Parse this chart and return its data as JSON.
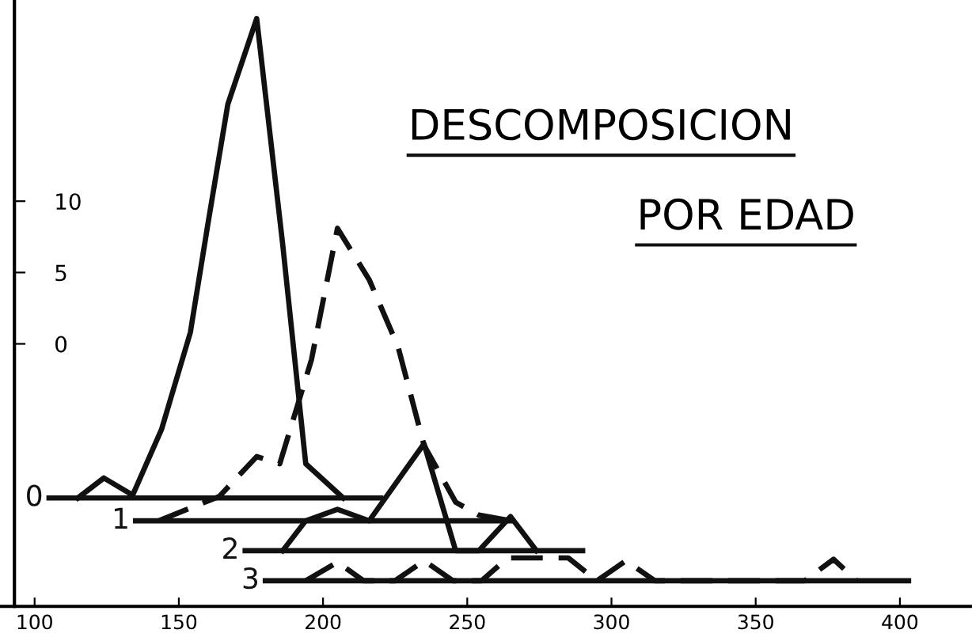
{
  "chart_data": {
    "type": "line",
    "title": "DESCOMPOSICION",
    "subtitle": "POR EDAD",
    "xlim": [
      88,
      425
    ],
    "xticks": [
      100,
      150,
      200,
      250,
      300,
      350,
      400
    ],
    "ylim": [
      -18.4,
      24.1
    ],
    "yticks": [
      10,
      5,
      0
    ],
    "series": [
      {
        "color": "#111111",
        "line_style": "solid",
        "x": [
          115,
          124,
          134,
          144,
          154,
          160,
          167,
          177,
          186,
          194,
          207
        ],
        "values": [
          -10.8,
          -9.4,
          -10.6,
          -6.0,
          0.8,
          8.3,
          16.8,
          22.8,
          7.0,
          -8.4,
          -10.8
        ]
      },
      {
        "color": "#111111",
        "line_style": "dashed",
        "x": [
          143,
          164,
          177,
          185,
          196,
          205,
          216,
          226,
          235,
          246,
          254,
          265
        ],
        "values": [
          -12.4,
          -10.7,
          -7.9,
          -8.4,
          -1.1,
          8.1,
          4.5,
          -0.2,
          -7.1,
          -11.1,
          -12.0,
          -12.4
        ]
      },
      {
        "color": "#111111",
        "line_style": "solid",
        "x": [
          186,
          194,
          205,
          216,
          235,
          246,
          254,
          265,
          274
        ],
        "values": [
          -14.5,
          -12.4,
          -11.6,
          -12.4,
          -7.0,
          -14.5,
          -14.5,
          -12.1,
          -14.5
        ]
      },
      {
        "color": "#111111",
        "line_style": "dashed",
        "x": [
          194,
          205,
          214,
          225,
          235,
          245,
          255,
          264,
          285,
          295,
          305,
          315,
          367,
          377,
          385
        ],
        "values": [
          -16.6,
          -15.3,
          -16.6,
          -16.6,
          -15.2,
          -16.6,
          -16.6,
          -15.0,
          -15.0,
          -16.6,
          -15.2,
          -16.6,
          -16.6,
          -15.1,
          -16.6
        ]
      },
      {
        "name": "0",
        "color": "#111111",
        "line_style": "solid",
        "x": [
          105,
          220
        ],
        "values": [
          -10.8,
          -10.8
        ]
      },
      {
        "name": "1",
        "color": "#111111",
        "line_style": "solid",
        "x": [
          135,
          265
        ],
        "values": [
          -12.4,
          -12.4
        ]
      },
      {
        "name": "2",
        "color": "#111111",
        "line_style": "solid",
        "x": [
          173,
          290
        ],
        "values": [
          -14.5,
          -14.5
        ]
      },
      {
        "name": "3",
        "color": "#111111",
        "line_style": "solid",
        "x": [
          180,
          403
        ],
        "values": [
          -16.6,
          -16.6
        ]
      }
    ]
  }
}
